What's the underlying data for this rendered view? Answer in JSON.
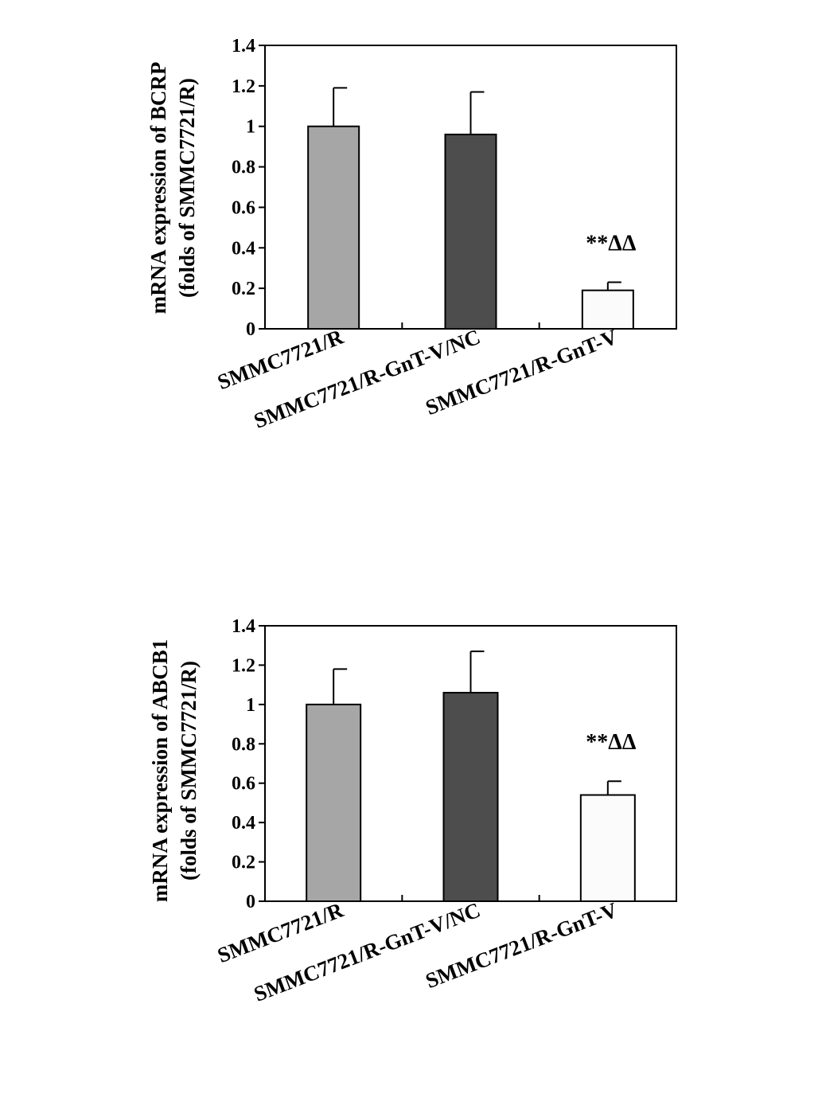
{
  "chart_data": [
    {
      "type": "bar",
      "categories": [
        "SMMC7721/R",
        "SMMC7721/R-GnT-V/NC",
        "SMMC7721/R-GnT-V"
      ],
      "values": [
        1.0,
        0.96,
        0.19
      ],
      "errors": [
        0.19,
        0.21,
        0.04
      ],
      "annotations": [
        "",
        "",
        "**ΔΔ"
      ],
      "bar_colors": [
        "#a6a6a6",
        "#4d4d4d",
        "#fbfbfb"
      ],
      "ylabel_line1": "mRNA expression of BCRP",
      "ylabel_line2": "(folds of SMMC7721/R)",
      "ylim": [
        0,
        1.4
      ],
      "yticks": [
        "0",
        "0.2",
        "0.4",
        "0.6",
        "0.8",
        "1",
        "1.2",
        "1.4"
      ],
      "grid": false
    },
    {
      "type": "bar",
      "categories": [
        "SMMC7721/R",
        "SMMC7721/R-GnT-V/NC",
        "SMMC7721/R-GnT-V"
      ],
      "values": [
        1.0,
        1.06,
        0.54
      ],
      "errors": [
        0.18,
        0.21,
        0.07
      ],
      "annotations": [
        "",
        "",
        "**ΔΔ"
      ],
      "bar_colors": [
        "#a6a6a6",
        "#4d4d4d",
        "#fbfbfb"
      ],
      "ylabel_line1": "mRNA expression of ABCB1",
      "ylabel_line2": "(folds of SMMC7721/R)",
      "ylim": [
        0,
        1.4
      ],
      "yticks": [
        "0",
        "0.2",
        "0.4",
        "0.6",
        "0.8",
        "1",
        "1.2",
        "1.4"
      ],
      "grid": false
    }
  ]
}
